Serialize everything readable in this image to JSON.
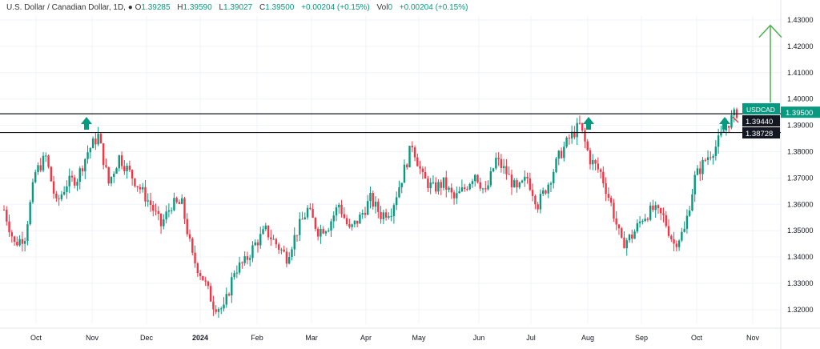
{
  "legend": {
    "title": "U.S. Dollar / Canadian Dollar, 1D,",
    "open": "1.39285",
    "high": "1.39590",
    "low": "1.39027",
    "close": "1.39500",
    "change": "+0.00204 (+0.15%)",
    "vol_label": "Vol",
    "vol": "0",
    "vol_change": "+0.00204 (+0.15%)"
  },
  "colors": {
    "up": "#089981",
    "down": "#f23645",
    "line": "#131722",
    "arrow": "#4caf50"
  },
  "chart_data": {
    "type": "candlestick",
    "title": "U.S. Dollar / Canadian Dollar, 1D",
    "symbol": "USDCAD",
    "ylim": [
      1.315,
      1.435
    ],
    "yticks": [
      "1.43000",
      "1.42000",
      "1.41000",
      "1.40000",
      "1.39000",
      "1.38000",
      "1.37000",
      "1.36000",
      "1.35000",
      "1.34000",
      "1.33000",
      "1.32000"
    ],
    "xticks": [
      "Oct",
      "Nov",
      "Dec",
      "2024",
      "Feb",
      "Mar",
      "Apr",
      "May",
      "Jun",
      "Jul",
      "Aug",
      "Sep",
      "Oct",
      "Nov"
    ],
    "closes": [
      1.358,
      1.345,
      1.348,
      1.372,
      1.378,
      1.36,
      1.368,
      1.37,
      1.38,
      1.386,
      1.368,
      1.378,
      1.372,
      1.366,
      1.36,
      1.352,
      1.36,
      1.36,
      1.34,
      1.332,
      1.322,
      1.32,
      1.335,
      1.338,
      1.345,
      1.35,
      1.345,
      1.34,
      1.35,
      1.358,
      1.35,
      1.352,
      1.36,
      1.35,
      1.355,
      1.362,
      1.356,
      1.358,
      1.37,
      1.383,
      1.37,
      1.366,
      1.368,
      1.362,
      1.366,
      1.372,
      1.364,
      1.377,
      1.372,
      1.365,
      1.37,
      1.36,
      1.368,
      1.378,
      1.385,
      1.39,
      1.377,
      1.372,
      1.36,
      1.345,
      1.348,
      1.355,
      1.358,
      1.355,
      1.345,
      1.35,
      1.37,
      1.377,
      1.382,
      1.39,
      1.395
    ],
    "levels": [
      {
        "value": 1.3944,
        "label": "1.39440"
      },
      {
        "value": 1.38728,
        "label": "1.38728"
      }
    ],
    "last_price": {
      "value": 1.395,
      "label": "1.39500"
    },
    "target": 1.428
  }
}
